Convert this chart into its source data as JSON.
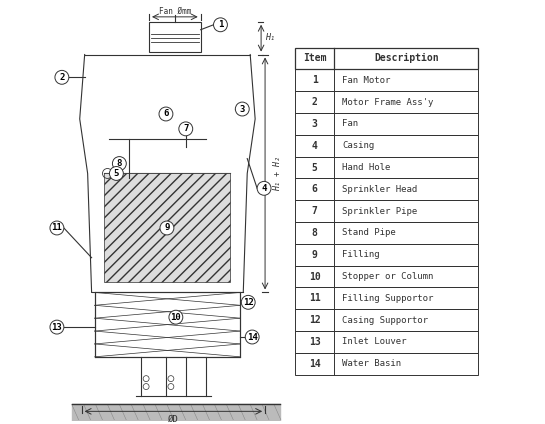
{
  "bg_color": "#ffffff",
  "line_color": "#333333",
  "table_items": [
    {
      "num": 1,
      "desc": "Fan Motor"
    },
    {
      "num": 2,
      "desc": "Motor Frame Ass'y"
    },
    {
      "num": 3,
      "desc": "Fan"
    },
    {
      "num": 4,
      "desc": "Casing"
    },
    {
      "num": 5,
      "desc": "Hand Hole"
    },
    {
      "num": 6,
      "desc": "Sprinkler Head"
    },
    {
      "num": 7,
      "desc": "Sprinkler Pipe"
    },
    {
      "num": 8,
      "desc": "Stand Pipe"
    },
    {
      "num": 9,
      "desc": "Filling"
    },
    {
      "num": 10,
      "desc": "Stopper or Column"
    },
    {
      "num": 11,
      "desc": "Filling Supportor"
    },
    {
      "num": 12,
      "desc": "Casing Supportor"
    },
    {
      "num": 13,
      "desc": "Inlet Louver"
    },
    {
      "num": 14,
      "desc": "Water Basin"
    }
  ],
  "dim_label_fan": "Fan Ømm",
  "dim_label_od": "ØD",
  "dim_label_h1": "H₁",
  "dim_label_h": "H₁ + H₂"
}
